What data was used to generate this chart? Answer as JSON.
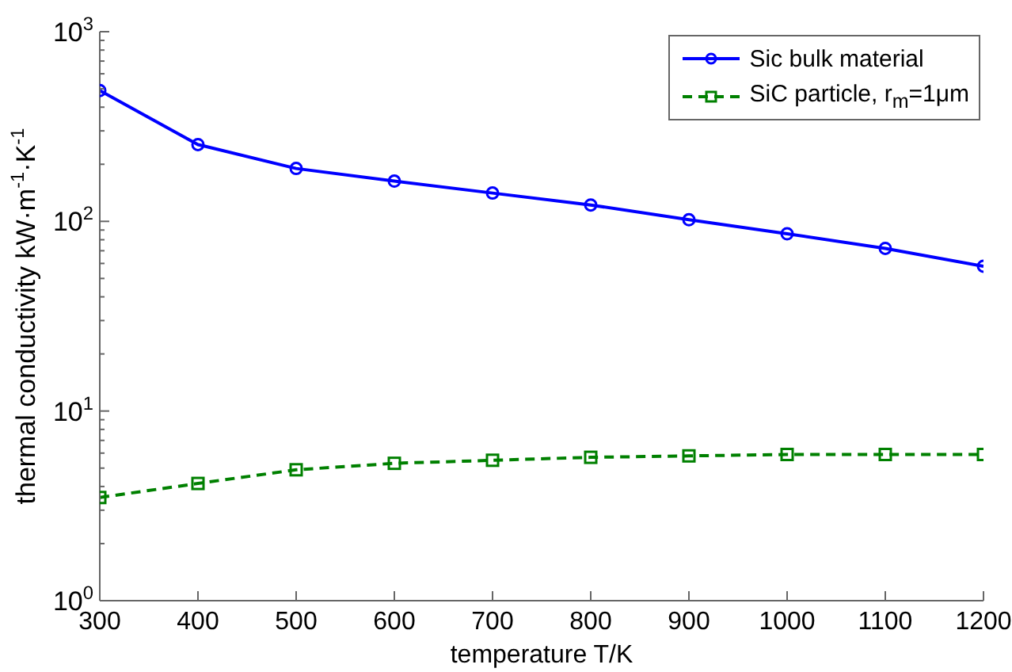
{
  "chart_data": {
    "type": "line",
    "xlabel": "temperature T/K",
    "ylabel": "thermal conductivity kW·m$^{-1}$·K$^{-1}$",
    "log": "y",
    "grid": false,
    "legend": "top right",
    "x": [
      300,
      400,
      500,
      600,
      700,
      800,
      900,
      1000,
      1100,
      1200
    ],
    "xlim": [
      300,
      1200
    ],
    "xticks": [
      300,
      400,
      500,
      600,
      700,
      800,
      900,
      1000,
      1100,
      1200
    ],
    "ylim": [
      1,
      1000
    ],
    "yticks": [
      {
        "value": 1,
        "label": "10$^{0}$"
      },
      {
        "value": 2,
        "label": null
      },
      {
        "value": 3,
        "label": null
      },
      {
        "value": 4,
        "label": null
      },
      {
        "value": 5,
        "label": null
      },
      {
        "value": 6,
        "label": null
      },
      {
        "value": 7,
        "label": null
      },
      {
        "value": 8,
        "label": null
      },
      {
        "value": 9,
        "label": null
      },
      {
        "value": 10,
        "label": "10$^{1}$"
      },
      {
        "value": 20,
        "label": null
      },
      {
        "value": 30,
        "label": null
      },
      {
        "value": 40,
        "label": null
      },
      {
        "value": 50,
        "label": null
      },
      {
        "value": 60,
        "label": null
      },
      {
        "value": 70,
        "label": null
      },
      {
        "value": 80,
        "label": null
      },
      {
        "value": 90,
        "label": null
      },
      {
        "value": 100,
        "label": "10$^{2}$"
      },
      {
        "value": 200,
        "label": null
      },
      {
        "value": 300,
        "label": null
      },
      {
        "value": 400,
        "label": null
      },
      {
        "value": 500,
        "label": null
      },
      {
        "value": 600,
        "label": null
      },
      {
        "value": 700,
        "label": null
      },
      {
        "value": 800,
        "label": null
      },
      {
        "value": 900,
        "label": null
      },
      {
        "value": 1000,
        "label": "10$^{3}$"
      }
    ],
    "series": [
      {
        "name": "Sic bulk material",
        "color": "#0000ff",
        "marker": "circle",
        "line_style": "solid",
        "values": [
          490,
          254,
          190,
          163,
          141,
          122,
          102,
          86,
          72,
          58
        ]
      },
      {
        "name": "SiC particle, r$_{m}$=1μm",
        "color": "#008000",
        "marker": "square",
        "line_style": "dashed",
        "values": [
          3.5,
          4.15,
          4.9,
          5.3,
          5.5,
          5.7,
          5.8,
          5.9,
          5.9,
          5.9
        ]
      }
    ]
  }
}
